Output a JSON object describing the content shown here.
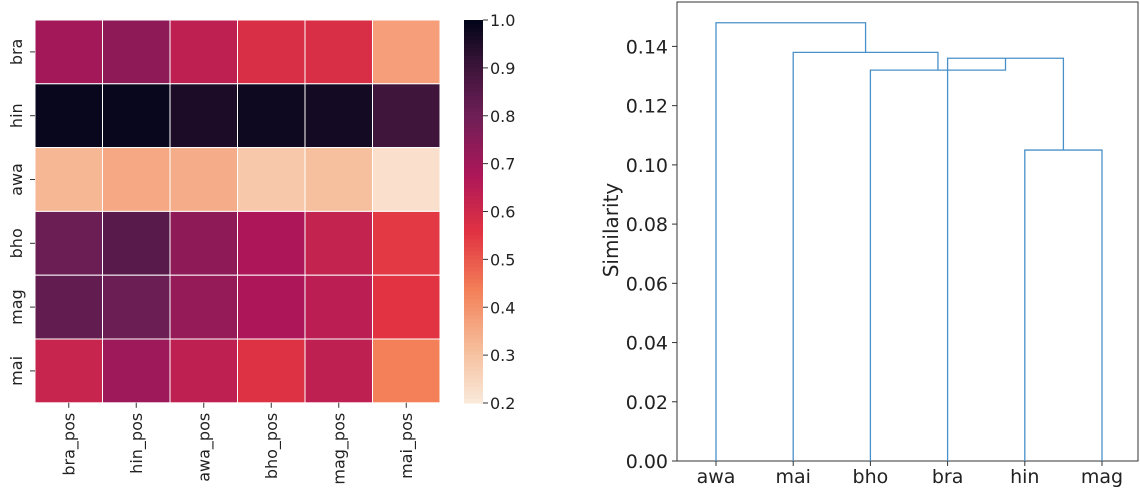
{
  "chart_data": [
    {
      "type": "heatmap",
      "rows": [
        "bra",
        "hin",
        "awa",
        "bho",
        "mag",
        "mai"
      ],
      "columns": [
        "bra_pos",
        "hin_pos",
        "awa_pos",
        "bho_pos",
        "mag_pos",
        "mai_pos"
      ],
      "values": [
        [
          0.7,
          0.74,
          0.64,
          0.58,
          0.58,
          0.38
        ],
        [
          0.99,
          0.99,
          0.96,
          0.98,
          0.97,
          0.9
        ],
        [
          0.33,
          0.36,
          0.35,
          0.29,
          0.31,
          0.23
        ],
        [
          0.81,
          0.85,
          0.74,
          0.68,
          0.63,
          0.55
        ],
        [
          0.83,
          0.81,
          0.73,
          0.68,
          0.65,
          0.56
        ],
        [
          0.62,
          0.71,
          0.64,
          0.57,
          0.64,
          0.44
        ]
      ],
      "colorbar": {
        "range": [
          0.2,
          1.0
        ],
        "ticks": [
          "0.2",
          "0.3",
          "0.4",
          "0.5",
          "0.6",
          "0.7",
          "0.8",
          "0.9",
          "1.0"
        ]
      }
    },
    {
      "type": "dendrogram",
      "leaves": [
        "awa",
        "mai",
        "bho",
        "bra",
        "hin",
        "mag"
      ],
      "ylabel": "Similarity",
      "ylim": [
        0.0,
        0.155
      ],
      "yticks": [
        "0.00",
        "0.02",
        "0.04",
        "0.06",
        "0.08",
        "0.10",
        "0.12",
        "0.14"
      ],
      "merges": [
        {
          "left": "hin",
          "right": "mag",
          "height": 0.105
        },
        {
          "left": "bra",
          "right": "hin+mag",
          "height": 0.136
        },
        {
          "left": "bho",
          "right": "bra+hin+mag",
          "height": 0.132
        },
        {
          "left": "mai",
          "right": "bho+bra+hin+mag",
          "height": 0.138
        },
        {
          "left": "awa",
          "right": "mai+bho+bra+hin+mag",
          "height": 0.148
        }
      ],
      "link_color": "#4a90c8"
    }
  ]
}
